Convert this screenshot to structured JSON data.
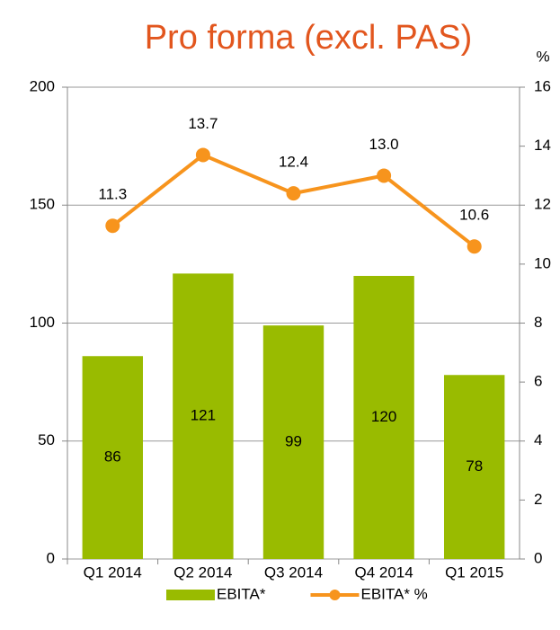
{
  "chart_data": {
    "type": "bar",
    "title": "Pro forma (excl. PAS)",
    "y2label": "%",
    "categories": [
      "Q1 2014",
      "Q2 2014",
      "Q3 2014",
      "Q4 2014",
      "Q1 2015"
    ],
    "series": [
      {
        "name": "EBITA*",
        "type": "bar",
        "color": "#99bb00",
        "values": [
          86,
          121,
          99,
          120,
          78
        ]
      },
      {
        "name": "EBITA* %",
        "type": "line",
        "axis": "y2",
        "color": "#f7941d",
        "values": [
          11.3,
          13.7,
          12.4,
          13.0,
          10.6
        ],
        "value_labels": [
          "11.3",
          "13.7",
          "12.4",
          "13.0",
          "10.6"
        ]
      }
    ],
    "ylim": [
      0,
      200
    ],
    "yticks": [
      0,
      50,
      100,
      150,
      200
    ],
    "y2lim": [
      0,
      16
    ],
    "y2ticks": [
      0,
      2,
      4,
      6,
      8,
      10,
      12,
      14,
      16
    ],
    "grid": true,
    "legend": "bottom"
  }
}
